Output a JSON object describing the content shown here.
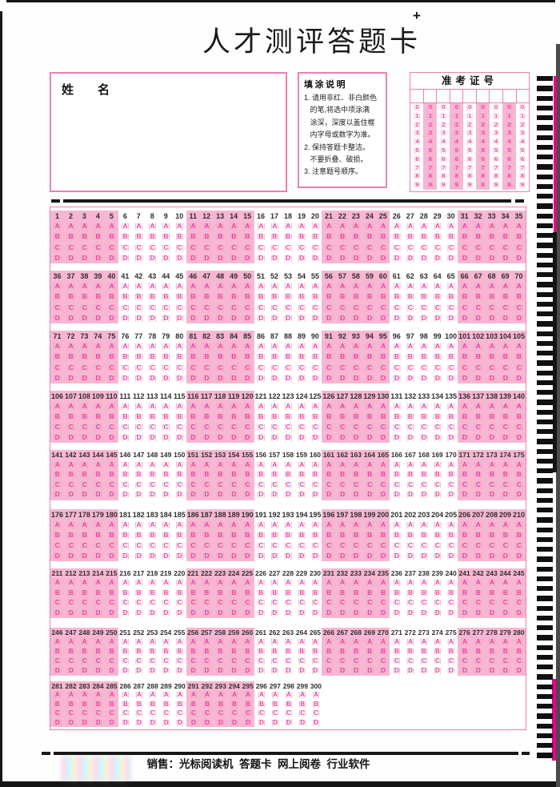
{
  "page": {
    "title": "人才测评答题卡",
    "registration_mark": "+"
  },
  "name_box": {
    "label": "姓　　名"
  },
  "instructions": {
    "title": "填涂说明",
    "lines": [
      "1. 请用非红、非白颜色",
      "   的笔,将选中项涂满",
      "   涂深，深度以盖住框",
      "   内字母或数字为准。",
      "2. 保持答题卡整洁。",
      "   不要折叠、破损。",
      "3. 注意题号顺序。"
    ]
  },
  "admission_ticket": {
    "title": "准考证号",
    "columns": 9,
    "digits": [
      "0",
      "1",
      "2",
      "3",
      "4",
      "5",
      "6",
      "7",
      "8",
      "9"
    ]
  },
  "answer_grid": {
    "options": [
      "A",
      "B",
      "C",
      "D"
    ],
    "group_size": 5,
    "total_questions": 300,
    "rows": [
      {
        "start": 1,
        "end": 35
      },
      {
        "start": 36,
        "end": 70
      },
      {
        "start": 71,
        "end": 105
      },
      {
        "start": 106,
        "end": 140
      },
      {
        "start": 141,
        "end": 175
      },
      {
        "start": 176,
        "end": 210
      },
      {
        "start": 211,
        "end": 245
      },
      {
        "start": 246,
        "end": 280
      },
      {
        "start": 281,
        "end": 300
      }
    ]
  },
  "footer": {
    "text": "销售：光标阅读机  答题卡  网上阅卷  行业软件"
  },
  "decorations": {
    "timing_marks_count": 70
  },
  "colors": {
    "pink_bg": "#f7b6d2",
    "pink_border": "#ef7fae",
    "option_letter": "#e6439a",
    "option_bracket": "#f59dc6"
  }
}
